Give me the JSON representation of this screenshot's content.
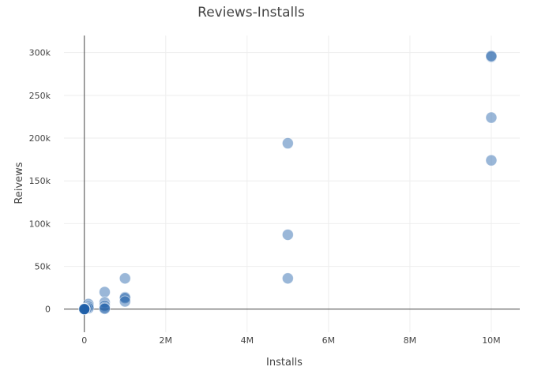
{
  "chart_data": {
    "type": "scatter",
    "title": "Reviews-Installs",
    "xlabel": "Installs",
    "ylabel": "Reivews",
    "xlim": [
      -500000,
      10700000
    ],
    "ylim": [
      -27000,
      320000
    ],
    "x_ticks": [
      0,
      2000000,
      4000000,
      6000000,
      8000000,
      10000000
    ],
    "x_tick_labels": [
      "0",
      "2M",
      "4M",
      "6M",
      "8M",
      "10M"
    ],
    "y_ticks": [
      0,
      50000,
      100000,
      150000,
      200000,
      250000,
      300000
    ],
    "y_tick_labels": [
      "0",
      "50k",
      "100k",
      "150k",
      "200k",
      "250k",
      "300k"
    ],
    "grid": true,
    "legend": "none",
    "series": [
      {
        "color": "#1f5fa8",
        "x": [
          10000000,
          10000000,
          10000000,
          10000000,
          5000000,
          5000000,
          5000000,
          1000000,
          1000000,
          1000000,
          1000000,
          500000,
          500000,
          500000,
          500000,
          500000,
          100000,
          100000,
          100000,
          50000,
          10000,
          10000,
          5000,
          1000,
          500,
          100
        ],
        "y": [
          295000,
          296000,
          224000,
          174000,
          194000,
          87000,
          36000,
          36000,
          14000,
          13000,
          9000,
          20000,
          8000,
          4000,
          1500,
          500,
          6000,
          3000,
          1000,
          800,
          500,
          300,
          200,
          100,
          50,
          10
        ]
      }
    ]
  }
}
